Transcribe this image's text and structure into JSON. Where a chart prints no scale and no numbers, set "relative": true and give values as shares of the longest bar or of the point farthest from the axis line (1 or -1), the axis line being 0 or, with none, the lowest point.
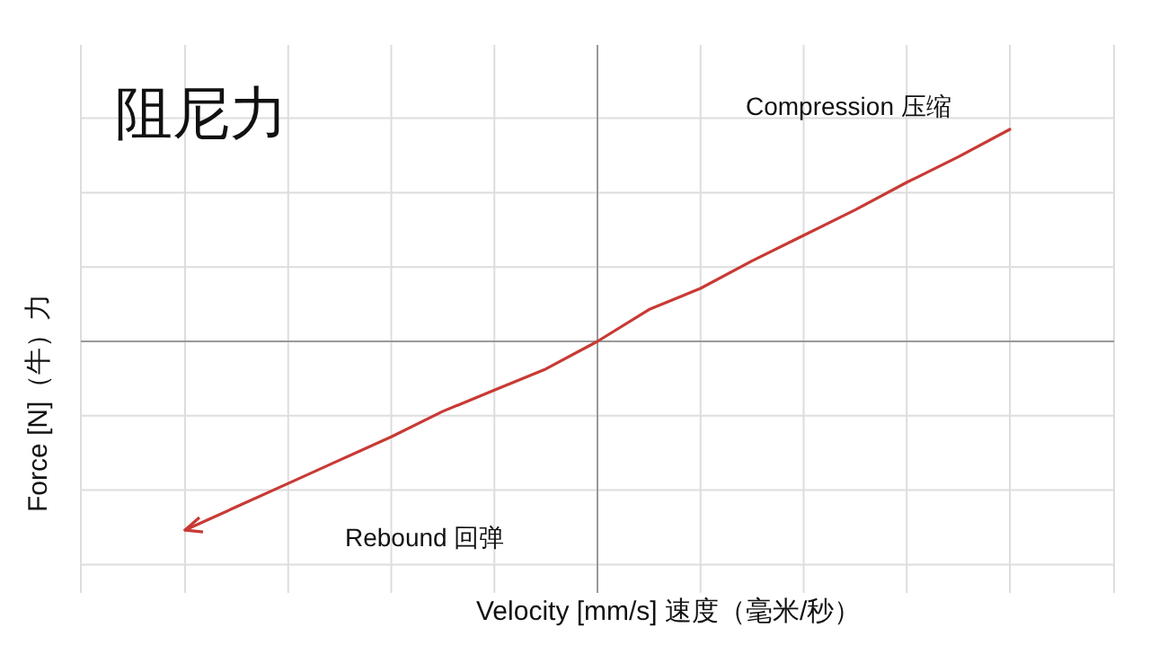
{
  "chart_data": {
    "type": "line",
    "relative": true,
    "title": "阻尼力",
    "xlabel": "Velocity [mm/s] 速度（毫米/秒）",
    "ylabel": "Force [N]（牛）力",
    "categories": [
      null,
      null,
      null,
      null,
      null,
      null,
      null,
      null,
      null,
      null,
      null,
      null,
      null,
      null,
      null,
      null,
      null
    ],
    "series": [
      {
        "color": "#c83a35",
        "values": [
          -0.89,
          -0.78,
          -0.67,
          -0.56,
          -0.45,
          -0.33,
          -0.23,
          -0.13,
          0,
          0.15,
          0.25,
          0.38,
          0.5,
          0.62,
          0.75,
          0.87,
          1
        ]
      }
    ],
    "annotations": [
      "Compression 压缩",
      "Rebound 回弹"
    ],
    "grid": true
  }
}
